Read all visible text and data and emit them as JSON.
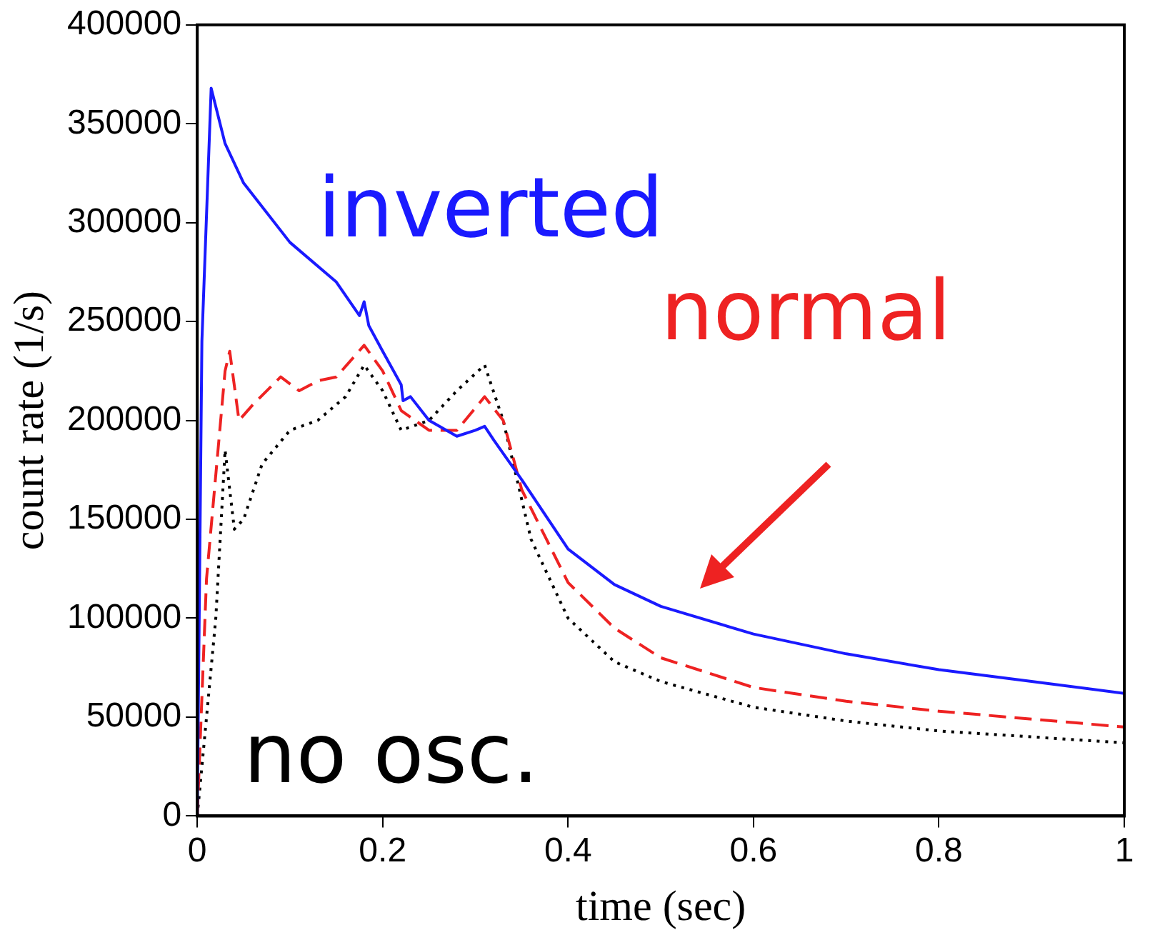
{
  "chart_data": {
    "type": "line",
    "xlabel": "time (sec)",
    "ylabel": "count rate (1/s)",
    "xlim": [
      0,
      1
    ],
    "ylim": [
      0,
      400000
    ],
    "xticks": [
      0,
      0.2,
      0.4,
      0.6,
      0.8,
      1
    ],
    "yticks": [
      0,
      50000,
      100000,
      150000,
      200000,
      250000,
      300000,
      350000,
      400000
    ],
    "grid": false,
    "legend": false,
    "marker": "none",
    "series": [
      {
        "name": "inverted",
        "color": "#1a1aff",
        "line_style": "solid",
        "x": [
          0,
          0.005,
          0.015,
          0.03,
          0.05,
          0.1,
          0.15,
          0.175,
          0.18,
          0.185,
          0.2,
          0.22,
          0.222,
          0.23,
          0.25,
          0.28,
          0.3,
          0.31,
          0.32,
          0.35,
          0.4,
          0.45,
          0.5,
          0.6,
          0.7,
          0.8,
          0.9,
          1
        ],
        "values": [
          0,
          240000,
          368000,
          340000,
          320000,
          290000,
          270000,
          253000,
          260000,
          248000,
          235000,
          218000,
          210000,
          212000,
          200000,
          192000,
          195000,
          197000,
          190000,
          170000,
          135000,
          117000,
          106000,
          92000,
          82000,
          74000,
          68000,
          62000
        ]
      },
      {
        "name": "normal",
        "color": "#ee2222",
        "line_style": "dashed",
        "x": [
          0,
          0.01,
          0.03,
          0.035,
          0.045,
          0.06,
          0.09,
          0.11,
          0.13,
          0.15,
          0.18,
          0.2,
          0.22,
          0.25,
          0.28,
          0.31,
          0.33,
          0.35,
          0.4,
          0.45,
          0.5,
          0.6,
          0.7,
          0.8,
          0.9,
          1
        ],
        "values": [
          0,
          120000,
          225000,
          235000,
          200000,
          208000,
          222000,
          215000,
          220000,
          222000,
          238000,
          225000,
          205000,
          195000,
          195000,
          212000,
          200000,
          165000,
          118000,
          95000,
          80000,
          65000,
          58000,
          53000,
          49000,
          45000
        ]
      },
      {
        "name": "no osc.",
        "color": "#000000",
        "line_style": "dotted",
        "x": [
          0,
          0.02,
          0.03,
          0.04,
          0.05,
          0.07,
          0.1,
          0.13,
          0.16,
          0.18,
          0.2,
          0.22,
          0.25,
          0.28,
          0.31,
          0.33,
          0.36,
          0.4,
          0.45,
          0.5,
          0.6,
          0.7,
          0.8,
          0.9,
          1
        ],
        "values": [
          0,
          100000,
          185000,
          145000,
          150000,
          178000,
          195000,
          200000,
          212000,
          228000,
          215000,
          195000,
          200000,
          215000,
          228000,
          200000,
          140000,
          100000,
          78000,
          68000,
          55000,
          48000,
          43000,
          40000,
          37000
        ]
      }
    ]
  }
}
